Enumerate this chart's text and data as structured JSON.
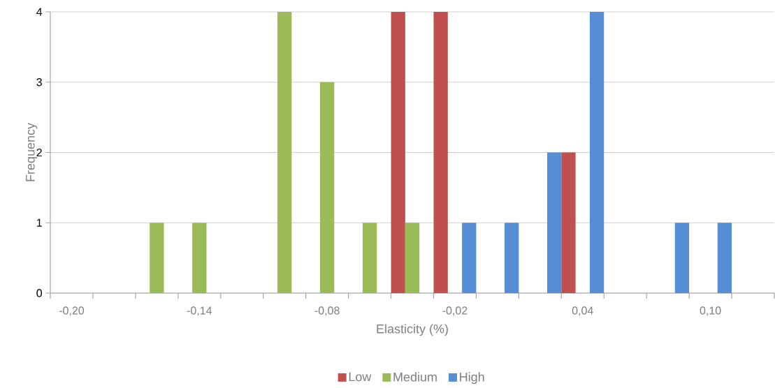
{
  "chart_data": {
    "type": "bar",
    "xlabel": "Elasticity (%)",
    "ylabel": "Frequency",
    "categories": [
      "-0,20",
      null,
      null,
      "-0,14",
      null,
      null,
      "-0,08",
      null,
      null,
      "-0,02",
      null,
      null,
      "0,04",
      null,
      null,
      "0,10",
      null
    ],
    "series": [
      {
        "name": "Low",
        "color": "#c0504d",
        "values": [
          0,
          0,
          0,
          0,
          0,
          0,
          0,
          0,
          4,
          4,
          0,
          0,
          2,
          0,
          0,
          0,
          0
        ]
      },
      {
        "name": "Medium",
        "color": "#9bbb59",
        "values": [
          0,
          0,
          1,
          1,
          0,
          4,
          3,
          1,
          1,
          0,
          0,
          0,
          0,
          0,
          0,
          0,
          0
        ]
      },
      {
        "name": "High",
        "color": "#558ed5",
        "values": [
          0,
          0,
          0,
          0,
          0,
          0,
          0,
          0,
          0,
          1,
          1,
          2,
          4,
          0,
          1,
          1,
          0
        ]
      }
    ],
    "ylim": [
      0,
      4
    ],
    "yticks": [
      0,
      1,
      2,
      3,
      4
    ],
    "grid": "y",
    "legend": "bottom"
  }
}
